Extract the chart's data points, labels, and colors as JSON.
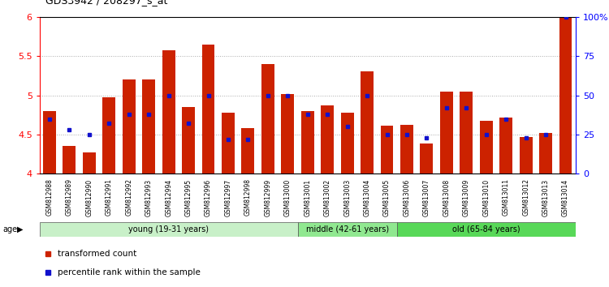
{
  "title": "GDS3942 / 208297_s_at",
  "samples": [
    "GSM812988",
    "GSM812989",
    "GSM812990",
    "GSM812991",
    "GSM812992",
    "GSM812993",
    "GSM812994",
    "GSM812995",
    "GSM812996",
    "GSM812997",
    "GSM812998",
    "GSM812999",
    "GSM813000",
    "GSM813001",
    "GSM813002",
    "GSM813003",
    "GSM813004",
    "GSM813005",
    "GSM813006",
    "GSM813007",
    "GSM813008",
    "GSM813009",
    "GSM813010",
    "GSM813011",
    "GSM813012",
    "GSM813013",
    "GSM813014"
  ],
  "red_values": [
    4.8,
    4.35,
    4.27,
    4.98,
    5.2,
    5.2,
    5.58,
    4.85,
    5.65,
    4.78,
    4.58,
    5.4,
    5.02,
    4.8,
    4.87,
    4.78,
    5.31,
    4.61,
    4.62,
    4.39,
    5.05,
    5.05,
    4.68,
    4.72,
    4.47,
    4.52,
    6.0
  ],
  "blue_pct": [
    35,
    28,
    25,
    32,
    38,
    38,
    50,
    32,
    50,
    22,
    22,
    50,
    50,
    38,
    38,
    30,
    50,
    25,
    25,
    23,
    42,
    42,
    25,
    35,
    23,
    25,
    100
  ],
  "age_groups": [
    {
      "label": "young (19-31 years)",
      "start": 0,
      "end": 13,
      "color": "#c8f0c8"
    },
    {
      "label": "middle (42-61 years)",
      "start": 13,
      "end": 18,
      "color": "#90e890"
    },
    {
      "label": "old (65-84 years)",
      "start": 18,
      "end": 27,
      "color": "#58d858"
    }
  ],
  "ylim_left": [
    4.0,
    6.0
  ],
  "ylim_right": [
    0,
    100
  ],
  "yticks_left": [
    4.0,
    4.5,
    5.0,
    5.5,
    6.0
  ],
  "ytick_labels_left": [
    "4",
    "4.5",
    "5",
    "5.5",
    "6"
  ],
  "yticks_right": [
    0,
    25,
    50,
    75,
    100
  ],
  "ytick_labels_right": [
    "0",
    "25",
    "50",
    "75",
    "100%"
  ],
  "bar_color": "#cc2200",
  "dot_color": "#1111cc",
  "grid_dotted": [
    4.5,
    5.0,
    5.5
  ],
  "bar_width": 0.65,
  "legend_items": [
    {
      "label": "transformed count",
      "color": "#cc2200"
    },
    {
      "label": "percentile rank within the sample",
      "color": "#1111cc"
    }
  ]
}
